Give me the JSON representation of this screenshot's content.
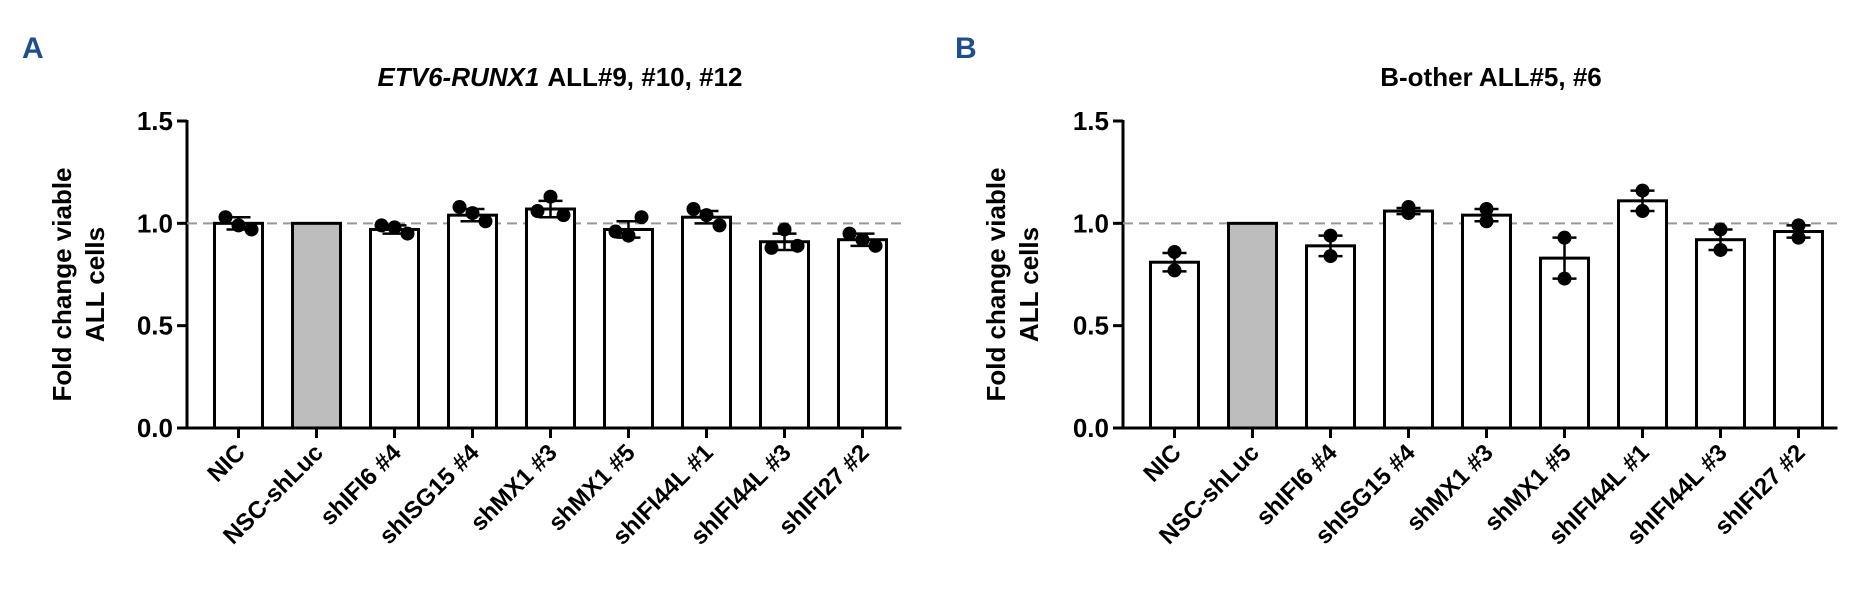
{
  "chart_data": [
    {
      "type": "bar",
      "panel": "A",
      "title_italic": "ETV6-RUNX1",
      "title": "ALL#9, #10, #12",
      "ylabel": [
        "Fold change viable",
        "ALL cells"
      ],
      "categories": [
        "NIC",
        "NSC-shLuc",
        "shIFI6 #4",
        "shISG15 #4",
        "shMX1 #3",
        "shMX1 #5",
        "shIFI44L #1",
        "shIFI44L #3",
        "shIFI27 #2"
      ],
      "values": [
        1.0,
        1.0,
        0.97,
        1.04,
        1.07,
        0.97,
        1.03,
        0.91,
        0.92
      ],
      "errors": [
        0.03,
        0,
        0.02,
        0.03,
        0.04,
        0.04,
        0.03,
        0.04,
        0.03
      ],
      "points": [
        [
          1.03,
          0.97,
          0.99
        ],
        [
          1.0,
          1.0,
          1.0
        ],
        [
          0.99,
          0.95,
          0.98
        ],
        [
          1.08,
          1.01,
          1.05
        ],
        [
          1.06,
          1.04,
          1.13
        ],
        [
          0.96,
          1.03,
          0.94
        ],
        [
          1.07,
          0.99,
          1.04
        ],
        [
          0.88,
          0.89,
          0.97
        ],
        [
          0.95,
          0.89,
          0.92
        ]
      ],
      "bar_colors": [
        "#ffffff",
        "#bdbdbd",
        "#ffffff",
        "#ffffff",
        "#ffffff",
        "#ffffff",
        "#ffffff",
        "#ffffff",
        "#ffffff"
      ],
      "ylim": [
        0,
        1.5
      ],
      "yticks": [
        {
          "value": 0,
          "label": "0.0"
        },
        {
          "value": 0.5,
          "label": "0.5"
        },
        {
          "value": 1,
          "label": "1.0"
        },
        {
          "value": 1.5,
          "label": "1.5"
        }
      ],
      "hline": 1.0
    },
    {
      "type": "bar",
      "panel": "B",
      "title": "B-other ALL#5, #6",
      "ylabel": [
        "Fold change viable",
        "ALL cells"
      ],
      "categories": [
        "NIC",
        "NSC-shLuc",
        "shIFI6 #4",
        "shISG15 #4",
        "shMX1 #3",
        "shMX1 #5",
        "shIFI44L #1",
        "shIFI44L #3",
        "shIFI27 #2"
      ],
      "values": [
        0.81,
        1.0,
        0.89,
        1.06,
        1.04,
        0.83,
        1.11,
        0.92,
        0.96
      ],
      "errors": [
        0.045,
        0,
        0.05,
        0.015,
        0.03,
        0.1,
        0.05,
        0.05,
        0.03
      ],
      "points": [
        [
          0.86,
          0.77
        ],
        [
          1.0,
          1.0
        ],
        [
          0.94,
          0.84
        ],
        [
          1.08,
          1.05
        ],
        [
          1.07,
          1.01
        ],
        [
          0.93,
          0.73
        ],
        [
          1.16,
          1.06
        ],
        [
          0.97,
          0.87
        ],
        [
          0.99,
          0.93
        ]
      ],
      "bar_colors": [
        "#ffffff",
        "#bdbdbd",
        "#ffffff",
        "#ffffff",
        "#ffffff",
        "#ffffff",
        "#ffffff",
        "#ffffff",
        "#ffffff"
      ],
      "ylim": [
        0,
        1.5
      ],
      "yticks": [
        {
          "value": 0,
          "label": "0.0"
        },
        {
          "value": 0.5,
          "label": "0.5"
        },
        {
          "value": 1,
          "label": "1.0"
        },
        {
          "value": 1.5,
          "label": "1.5"
        }
      ],
      "hline": 1.0
    }
  ]
}
